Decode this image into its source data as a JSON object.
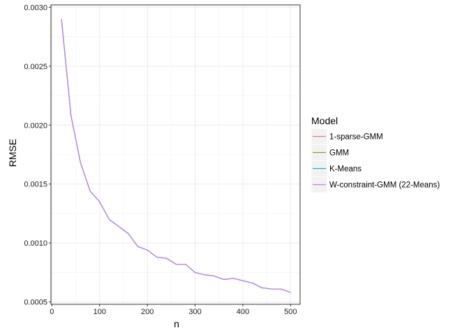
{
  "chart_data": {
    "type": "line",
    "xlabel": "n",
    "ylabel": "RMSE",
    "xlim": [
      -2,
      520
    ],
    "ylim": [
      0.00048,
      0.00302
    ],
    "x_ticks": [
      0,
      100,
      200,
      300,
      400,
      500
    ],
    "x_tick_labels": [
      "0",
      "100",
      "200",
      "300",
      "400",
      "500"
    ],
    "y_ticks": [
      0.0005,
      0.001,
      0.0015,
      0.002,
      0.0025,
      0.003
    ],
    "y_tick_labels": [
      "0.0005",
      "0.0010",
      "0.0015",
      "0.0020",
      "0.0025",
      "0.0030"
    ],
    "grid": true,
    "legend_title": "Model",
    "legend_position": "right",
    "x": [
      20,
      40,
      60,
      80,
      100,
      120,
      140,
      160,
      180,
      200,
      220,
      240,
      260,
      280,
      300,
      320,
      340,
      360,
      380,
      400,
      420,
      440,
      460,
      480,
      500
    ],
    "series": [
      {
        "name": "1-sparse-GMM",
        "color": "#F8766D",
        "values": [
          0.0029,
          0.00208,
          0.00168,
          0.00144,
          0.00135,
          0.0012,
          0.00114,
          0.00108,
          0.00097,
          0.00094,
          0.00088,
          0.00087,
          0.00082,
          0.00082,
          0.00075,
          0.00073,
          0.00072,
          0.00069,
          0.0007,
          0.00068,
          0.00066,
          0.00062,
          0.00061,
          0.00061,
          0.00058
        ]
      },
      {
        "name": "GMM",
        "color": "#7CAE00",
        "values": [
          0.0029,
          0.00208,
          0.00168,
          0.00144,
          0.00135,
          0.0012,
          0.00114,
          0.00108,
          0.00097,
          0.00094,
          0.00088,
          0.00087,
          0.00082,
          0.00082,
          0.00075,
          0.00073,
          0.00072,
          0.00069,
          0.0007,
          0.00068,
          0.00066,
          0.00062,
          0.00061,
          0.00061,
          0.00058
        ]
      },
      {
        "name": "K-Means",
        "color": "#00BFC4",
        "values": [
          0.0029,
          0.00208,
          0.00168,
          0.00144,
          0.00135,
          0.0012,
          0.00114,
          0.00108,
          0.00097,
          0.00094,
          0.00088,
          0.00087,
          0.00082,
          0.00082,
          0.00075,
          0.00073,
          0.00072,
          0.00069,
          0.0007,
          0.00068,
          0.00066,
          0.00062,
          0.00061,
          0.00061,
          0.00058
        ]
      },
      {
        "name": "W-constraint-GMM (22-Means)",
        "color": "#C77CFF",
        "values": [
          0.0029,
          0.00208,
          0.00168,
          0.00144,
          0.00135,
          0.0012,
          0.00114,
          0.00108,
          0.00097,
          0.00094,
          0.00088,
          0.00087,
          0.00082,
          0.00082,
          0.00075,
          0.00073,
          0.00072,
          0.00069,
          0.0007,
          0.00068,
          0.00066,
          0.00062,
          0.00061,
          0.00061,
          0.00058
        ]
      }
    ]
  }
}
